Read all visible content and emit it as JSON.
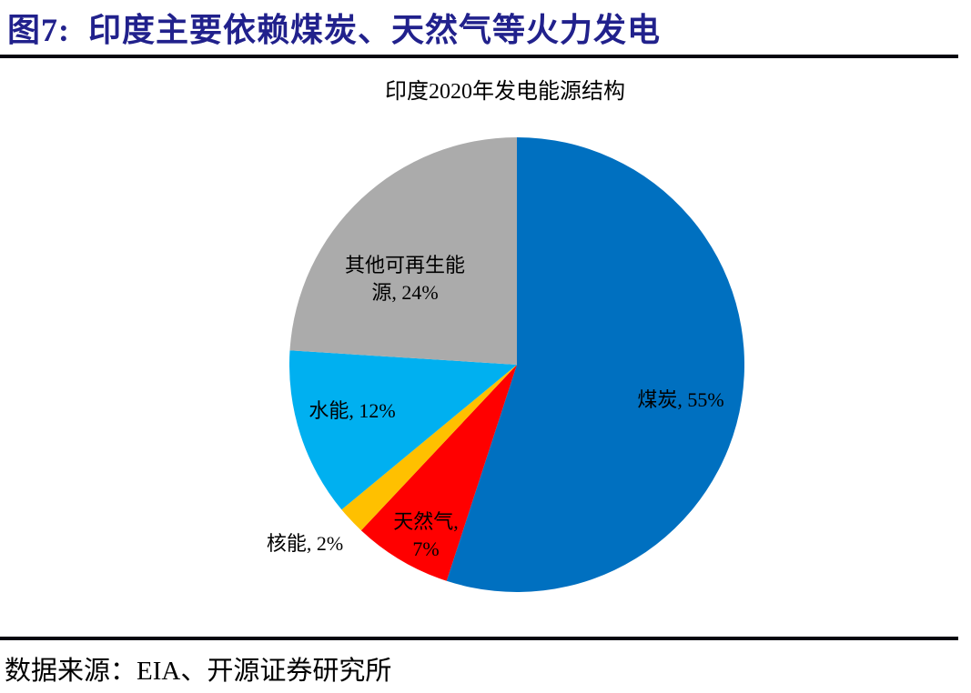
{
  "figure": {
    "title": "图7:  印度主要依赖煤炭、天然气等火力发电",
    "source": "数据来源：EIA、开源证券研究所"
  },
  "chart_data": {
    "type": "pie",
    "title": "印度2020年发电能源结构",
    "start_angle_deg": 0,
    "direction": "clockwise",
    "legend": "none",
    "label_color": "#000000",
    "slices": [
      {
        "id": "coal",
        "label": "煤炭",
        "value": 55,
        "color": "#0070C0",
        "lines": [
          "煤炭, 55%"
        ]
      },
      {
        "id": "natural-gas",
        "label": "天然气",
        "value": 7,
        "color": "#FF0000",
        "lines": [
          "天然气,",
          "7%"
        ]
      },
      {
        "id": "nuclear",
        "label": "核能",
        "value": 2,
        "color": "#FFC000",
        "lines": [
          "核能, 2%"
        ]
      },
      {
        "id": "hydro",
        "label": "水能",
        "value": 12,
        "color": "#00B0F0",
        "lines": [
          "水能, 12%"
        ]
      },
      {
        "id": "other-renewables",
        "label": "其他可再生能源",
        "value": 24,
        "color": "#ABABAB",
        "lines": [
          "其他可再生能",
          "源, 24%"
        ]
      }
    ]
  },
  "colors": {
    "title_navy": "#21218C",
    "rule_black": "#050510",
    "background": "#FFFFFF"
  }
}
